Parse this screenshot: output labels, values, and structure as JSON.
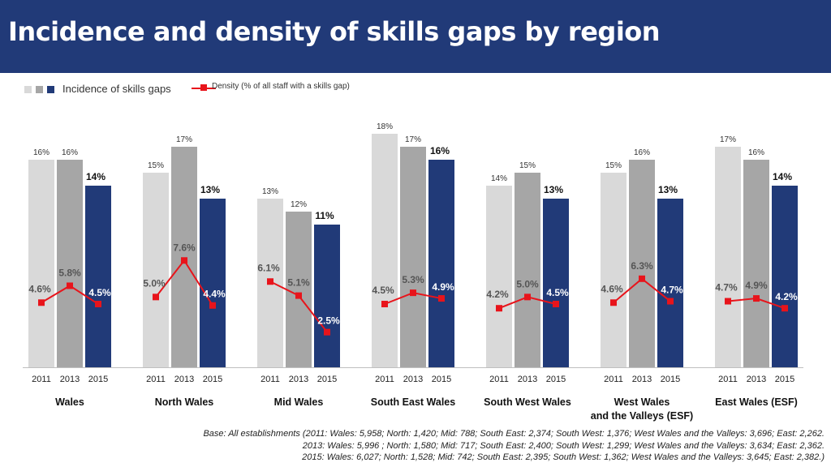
{
  "title": "Incidence and density of skills gaps by region",
  "legend": {
    "incidence_label": "Incidence of skills gaps",
    "density_label": "Density (% of all staff with a skills gap)"
  },
  "colors": {
    "bar_2011": "#d9d9d9",
    "bar_2013": "#a6a6a6",
    "bar_2015": "#213a78",
    "density_line": "#e8141b",
    "header_bg": "#213a78"
  },
  "chart_data": {
    "type": "bar",
    "categories": [
      "Wales",
      "North Wales",
      "Mid Wales",
      "South East Wales",
      "South West Wales",
      "West Wales and the Valleys (ESF)",
      "East Wales (ESF)"
    ],
    "years": [
      "2011",
      "2013",
      "2015"
    ],
    "series": [
      {
        "name": "Incidence of skills gaps",
        "values": [
          [
            16,
            16,
            14
          ],
          [
            15,
            17,
            13
          ],
          [
            13,
            12,
            11
          ],
          [
            18,
            17,
            16
          ],
          [
            14,
            15,
            13
          ],
          [
            15,
            16,
            13
          ],
          [
            17,
            16,
            14
          ]
        ],
        "labels": [
          [
            "16%",
            "16%",
            "14%"
          ],
          [
            "15%",
            "17%",
            "13%"
          ],
          [
            "13%",
            "12%",
            "11%"
          ],
          [
            "18%",
            "17%",
            "16%"
          ],
          [
            "14%",
            "15%",
            "13%"
          ],
          [
            "15%",
            "16%",
            "13%"
          ],
          [
            "17%",
            "16%",
            "14%"
          ]
        ]
      },
      {
        "name": "Density (% of all staff with a skills gap)",
        "values": [
          [
            4.6,
            5.8,
            4.5
          ],
          [
            5.0,
            7.6,
            4.4
          ],
          [
            6.1,
            5.1,
            2.5
          ],
          [
            4.5,
            5.3,
            4.9
          ],
          [
            4.2,
            5.0,
            4.5
          ],
          [
            4.6,
            6.3,
            4.7
          ],
          [
            4.7,
            4.9,
            4.2
          ]
        ],
        "labels": [
          [
            "4.6%",
            "5.8%",
            "4.5%"
          ],
          [
            "5.0%",
            "7.6%",
            "4.4%"
          ],
          [
            "6.1%",
            "5.1%",
            "2.5%"
          ],
          [
            "4.5%",
            "5.3%",
            "4.9%"
          ],
          [
            "4.2%",
            "5.0%",
            "4.5%"
          ],
          [
            "4.6%",
            "6.3%",
            "4.7%"
          ],
          [
            "4.7%",
            "4.9%",
            "4.2%"
          ]
        ]
      }
    ],
    "category_labels": [
      [
        "Wales"
      ],
      [
        "North Wales"
      ],
      [
        "Mid Wales"
      ],
      [
        "South East Wales"
      ],
      [
        "South West Wales"
      ],
      [
        "West Wales",
        "and the Valleys (ESF)"
      ],
      [
        "East Wales (ESF)"
      ]
    ],
    "ylim": [
      0,
      18
    ],
    "density_ylim": [
      0,
      15
    ],
    "grid": false
  },
  "footnote": [
    "Base: All establishments (2011: Wales: 5,958; North: 1,420; Mid: 788; South East: 2,374; South West: 1,376; West Wales and the Valleys: 3,696; East: 2,262.",
    "2013: Wales: 5,996 ; North: 1,580; Mid: 717; South East: 2,400; South West: 1,299; West Wales and the Valleys: 3,634; East: 2,362.",
    "2015: Wales: 6,027; North: 1,528; Mid: 742; South East: 2,395; South West: 1,362; West Wales and the Valleys: 3,645; East: 2,382.)"
  ]
}
